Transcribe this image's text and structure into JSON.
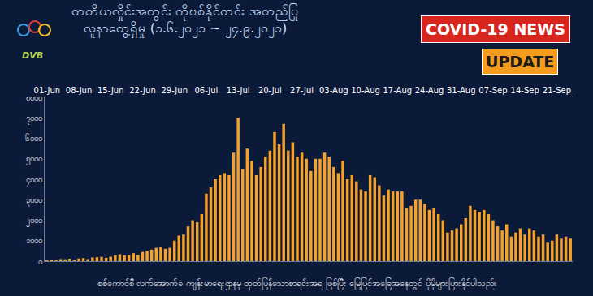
{
  "chart_data": {
    "type": "bar",
    "title": "တတိယလှိုင်းအတွင်း ကိုဗစ်နိုင်တင်း အတည်ပြု\nလူနာတွေ့ရှိမှု (၁.၆.၂၀၂၁ ~ ၂၄.၉.၂၀၂၁)",
    "annotations": [
      "COVID-19 NEWS",
      "UPDATE",
      "DVB",
      "စစ်ကောင်စီ လက်အောက်ခံ ကျန်းမာရေးဌာနမှ ထုတ်ပြန်သောစာရင်းအရ ဖြစ်ပြီး မြေပြင်အခြေအနေတွင် ပိုမိုများပြားနိုင်ပါသည်။"
    ],
    "categories": [
      "01-Jun",
      null,
      null,
      null,
      null,
      null,
      null,
      "08-Jun",
      null,
      null,
      null,
      null,
      null,
      null,
      "15-Jun",
      null,
      null,
      null,
      null,
      null,
      null,
      "22-Jun",
      null,
      null,
      null,
      null,
      null,
      null,
      "29-Jun",
      null,
      null,
      null,
      null,
      null,
      null,
      "06-Jul",
      null,
      null,
      null,
      null,
      null,
      null,
      "13-Jul",
      null,
      null,
      null,
      null,
      null,
      null,
      "20-Jul",
      null,
      null,
      null,
      null,
      null,
      null,
      "27-Jul",
      null,
      null,
      null,
      null,
      null,
      null,
      "03-Aug",
      null,
      null,
      null,
      null,
      null,
      null,
      "10-Aug",
      null,
      null,
      null,
      null,
      null,
      null,
      "17-Aug",
      null,
      null,
      null,
      null,
      null,
      null,
      "24-Aug",
      null,
      null,
      null,
      null,
      null,
      null,
      "31-Aug",
      null,
      null,
      null,
      null,
      null,
      null,
      "07-Sep",
      null,
      null,
      null,
      null,
      null,
      null,
      "14-Sep",
      null,
      null,
      null,
      null,
      null,
      null,
      "21-Sep",
      null,
      null,
      null
    ],
    "values": [
      60,
      80,
      70,
      100,
      90,
      120,
      70,
      130,
      150,
      100,
      180,
      190,
      210,
      160,
      220,
      290,
      340,
      280,
      300,
      390,
      300,
      450,
      500,
      560,
      650,
      700,
      600,
      650,
      1000,
      1250,
      1300,
      1700,
      2000,
      1900,
      2300,
      3300,
      3600,
      4000,
      4200,
      4300,
      4200,
      5300,
      7000,
      4500,
      5500,
      4900,
      4200,
      4600,
      5100,
      5400,
      6300,
      5700,
      6700,
      5400,
      5800,
      5100,
      5300,
      5000,
      4400,
      5000,
      5000,
      5300,
      5100,
      4600,
      4300,
      4900,
      4000,
      4200,
      3900,
      3500,
      3400,
      4200,
      4100,
      3700,
      3200,
      3500,
      3400,
      3400,
      3400,
      2600,
      2700,
      3000,
      3000,
      2800,
      2500,
      2600,
      2300,
      2000,
      1400,
      1500,
      1600,
      1800,
      2100,
      2700,
      2500,
      2400,
      2500,
      2300,
      2000,
      1700,
      1500,
      1800,
      1200,
      1400,
      1600,
      1300,
      1600,
      1500,
      1200,
      1300,
      900,
      1000,
      1300,
      1100,
      1200,
      1100
    ],
    "color": "#f5a12a",
    "ylim": [
      0,
      8000
    ],
    "yticks": [
      {
        "value": 0,
        "label": "၀"
      },
      {
        "value": 1000,
        "label": "၁၀၀၀"
      },
      {
        "value": 2000,
        "label": "၂၀၀၀"
      },
      {
        "value": 3000,
        "label": "၃၀၀၀"
      },
      {
        "value": 4000,
        "label": "၄၀၀၀"
      },
      {
        "value": 5000,
        "label": "၅၀၀၀"
      },
      {
        "value": 6000,
        "label": "၆၀၀၀"
      },
      {
        "value": 7000,
        "label": "၇၀၀၀"
      },
      {
        "value": 8000,
        "label": "၈၀၀၀"
      }
    ],
    "grid": false
  }
}
